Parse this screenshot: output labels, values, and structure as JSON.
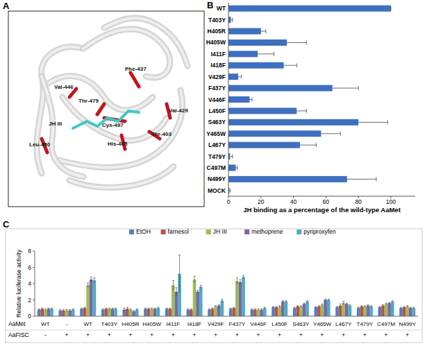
{
  "panel_labels": [
    "A",
    "B",
    "C"
  ],
  "structure": {
    "labels": [
      "Val-446",
      "Phe-437",
      "Thr-479",
      "Val-429",
      "JH III",
      "Cys-497",
      "Thr-403",
      "Leu-450",
      "His-405"
    ]
  },
  "chart_data": [
    {
      "type": "bar",
      "orientation": "horizontal",
      "color": "#3f6fbf",
      "xlabel": "JH binding as a percentage of the wild-type AaMet",
      "categories": [
        "WT",
        "T403Y",
        "H405R",
        "H405W",
        "I411F",
        "I418F",
        "V429F",
        "F437Y",
        "V446F",
        "L450F",
        "S463Y",
        "Y465W",
        "L467Y",
        "T479Y",
        "C497M",
        "N499Y",
        "MOCK"
      ],
      "values": [
        100,
        1.5,
        20,
        36,
        18,
        34,
        6,
        64,
        13,
        42,
        80,
        57,
        44,
        1,
        4.5,
        73,
        0.5
      ],
      "errors": [
        0,
        1,
        3,
        12,
        10,
        8,
        2,
        16,
        1.5,
        6,
        18,
        12,
        10,
        1.5,
        1,
        18,
        0.5
      ],
      "xlim": [
        0,
        115
      ],
      "xticks": [
        0,
        20,
        40,
        60,
        80,
        100
      ],
      "grid": false
    },
    {
      "type": "bar",
      "legend": "top",
      "grid": false,
      "ylabel": "Relative luciferase activity",
      "category_name": "AaMet",
      "categories": [
        "WT",
        "-",
        "WT",
        "T403Y",
        "H405R",
        "H405W",
        "I411F",
        "I418F",
        "V429F",
        "F437Y",
        "V446F",
        "L450F",
        "S463Y",
        "Y465W",
        "L467Y",
        "T479Y",
        "C497M",
        "N499Y"
      ],
      "second_categories": {
        "name": "AaFISC",
        "labels": [
          "-",
          "+",
          "+",
          "+",
          "+",
          "+",
          "+",
          "+",
          "+",
          "+",
          "+",
          "+",
          "+",
          "+",
          "+",
          "+",
          "+",
          "+"
        ]
      },
      "ylim": [
        0,
        8
      ],
      "yticks": [
        0,
        2,
        4,
        6,
        8
      ],
      "series": [
        {
          "name": "EtOH",
          "color": "#4f81bd",
          "values": [
            0.8,
            0.7,
            0.9,
            0.8,
            0.8,
            0.9,
            0.9,
            0.8,
            0.8,
            0.9,
            0.8,
            1.1,
            1.0,
            1.1,
            1.1,
            1.0,
            1.1,
            1.0
          ],
          "errors": [
            0.1,
            0.1,
            0.1,
            0.1,
            0.2,
            0.1,
            0.1,
            0.1,
            0.1,
            0.1,
            0.1,
            0.1,
            0.1,
            0.1,
            0.1,
            0.1,
            0.1,
            0.1
          ]
        },
        {
          "name": "farnesol",
          "color": "#c0504d",
          "values": [
            0.9,
            0.7,
            1.0,
            0.9,
            0.9,
            0.9,
            0.9,
            0.8,
            0.9,
            1.0,
            0.8,
            1.1,
            1.2,
            1.2,
            1.3,
            1.2,
            1.3,
            1.1
          ],
          "errors": [
            0.1,
            0.1,
            0.1,
            0.1,
            0.2,
            0.1,
            0.1,
            0.1,
            0.1,
            0.1,
            0.1,
            0.1,
            0.1,
            0.1,
            0.2,
            0.1,
            0.1,
            0.1
          ]
        },
        {
          "name": "JH III",
          "color": "#9bbb59",
          "values": [
            0.8,
            0.7,
            3.8,
            0.9,
            0.8,
            0.9,
            3.8,
            4.5,
            1.2,
            4.3,
            0.8,
            1.2,
            1.2,
            1.4,
            1.6,
            1.2,
            1.5,
            1.2
          ],
          "errors": [
            0.1,
            0.1,
            0.3,
            0.1,
            0.1,
            0.1,
            0.6,
            0.4,
            0.1,
            0.4,
            0.1,
            0.1,
            0.1,
            0.1,
            0.2,
            0.1,
            0.1,
            0.1
          ]
        },
        {
          "name": "methoprene",
          "color": "#8064a2",
          "values": [
            0.9,
            0.7,
            4.5,
            0.9,
            0.6,
            0.9,
            3.0,
            3.0,
            1.3,
            4.2,
            0.8,
            1.8,
            1.5,
            2.0,
            1.5,
            1.3,
            1.6,
            1.0
          ],
          "errors": [
            0.1,
            0.1,
            0.3,
            0.1,
            0.1,
            0.1,
            0.5,
            0.2,
            0.1,
            0.3,
            0.1,
            0.1,
            0.1,
            0.1,
            0.1,
            0.1,
            0.1,
            0.1
          ]
        },
        {
          "name": "pyriproxyfen",
          "color": "#4bacc6",
          "values": [
            0.9,
            0.8,
            4.4,
            0.9,
            0.8,
            1.0,
            5.2,
            3.6,
            1.9,
            4.8,
            1.0,
            1.8,
            1.8,
            2.0,
            1.3,
            1.2,
            1.8,
            1.0
          ],
          "errors": [
            0.1,
            0.1,
            0.3,
            0.1,
            0.1,
            0.1,
            2.3,
            0.2,
            0.2,
            0.2,
            0.1,
            0.1,
            0.1,
            0.1,
            0.1,
            0.1,
            0.1,
            0.1
          ]
        }
      ]
    }
  ]
}
